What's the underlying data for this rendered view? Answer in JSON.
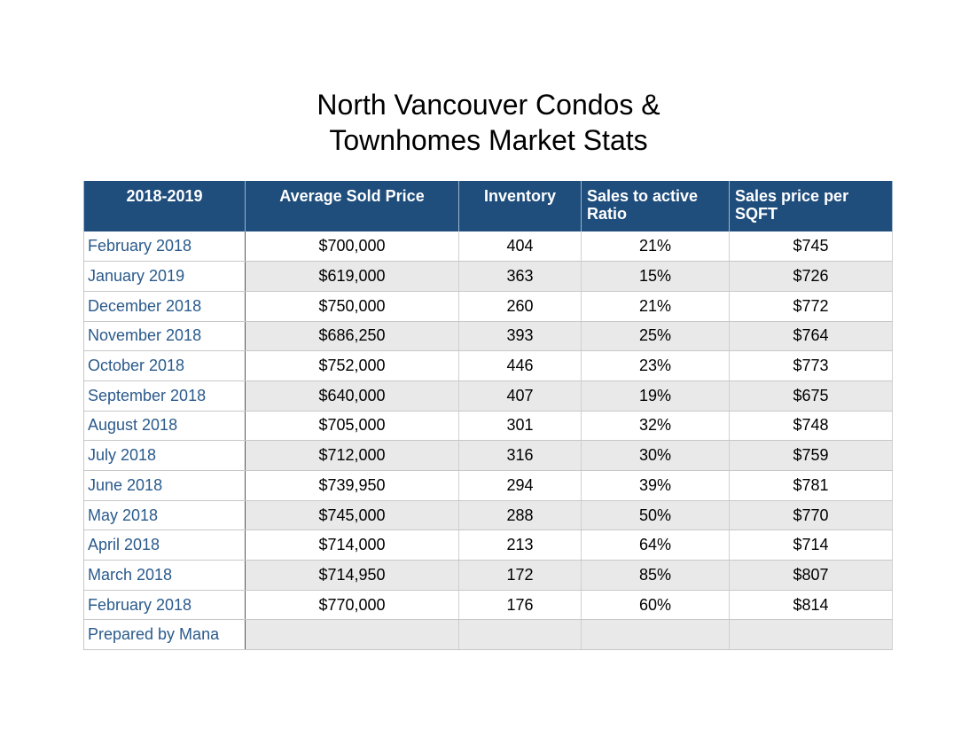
{
  "title": {
    "line1": "North Vancouver Condos &",
    "line2": "Townhomes Market Stats"
  },
  "table": {
    "headers": [
      "2018-2019",
      "Average Sold Price",
      "Inventory",
      "Sales to active Ratio",
      "Sales price per SQFT"
    ],
    "rows": [
      [
        "February 2018",
        "$700,000",
        "404",
        "21%",
        "$745"
      ],
      [
        "January 2019",
        "$619,000",
        "363",
        "15%",
        "$726"
      ],
      [
        "December 2018",
        "$750,000",
        "260",
        "21%",
        "$772"
      ],
      [
        "November 2018",
        "$686,250",
        "393",
        "25%",
        "$764"
      ],
      [
        "October 2018",
        "$752,000",
        "446",
        "23%",
        "$773"
      ],
      [
        "September 2018",
        "$640,000",
        "407",
        "19%",
        "$675"
      ],
      [
        "August 2018",
        "$705,000",
        "301",
        "32%",
        "$748"
      ],
      [
        "July 2018",
        "$712,000",
        "316",
        "30%",
        "$759"
      ],
      [
        "June 2018",
        "$739,950",
        "294",
        "39%",
        "$781"
      ],
      [
        "May 2018",
        "$745,000",
        "288",
        "50%",
        "$770"
      ],
      [
        "April 2018",
        "$714,000",
        "213",
        "64%",
        "$714"
      ],
      [
        "March 2018",
        "$714,950",
        "172",
        "85%",
        "$807"
      ],
      [
        "February 2018",
        "$770,000",
        "176",
        "60%",
        "$814"
      ],
      [
        "Prepared by Mana",
        "",
        "",
        "",
        ""
      ]
    ]
  },
  "colors": {
    "header_bg": "#1f4e7d",
    "header_text": "#ffffff",
    "label_text": "#2a5a8c",
    "stripe": "#e9e9e9"
  }
}
